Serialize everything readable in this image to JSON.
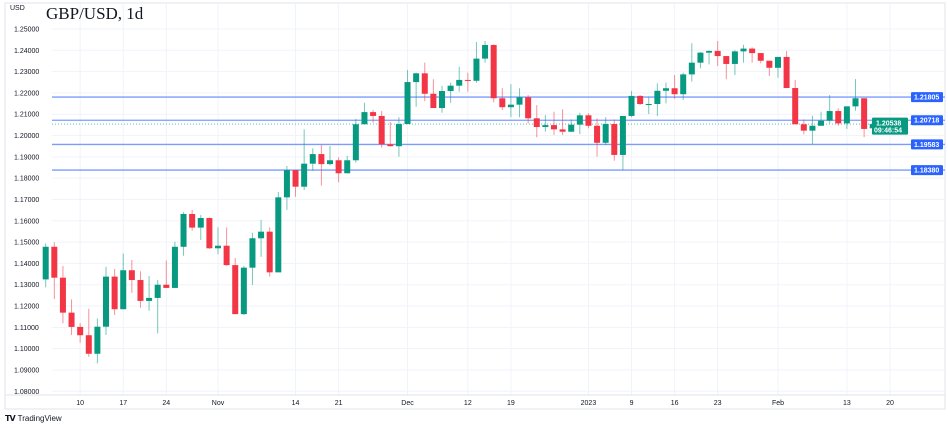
{
  "header": {
    "title": "GBP/USD, 1d",
    "unit": "USD"
  },
  "brand": {
    "logo_text": "TV",
    "name": "TradingView"
  },
  "colors": {
    "up": "#089981",
    "down": "#f23645",
    "level_line": "#7b9cff",
    "level_label": "#2962ff",
    "current_label": "#089981",
    "grid": "#f0f3fa"
  },
  "chart_data": {
    "type": "candlestick",
    "title": "GBP/USD, 1d",
    "ylabel": "USD",
    "ylim": [
      1.08,
      1.25
    ],
    "grid": true,
    "price_ticks": [
      "1.25000",
      "1.24000",
      "1.23000",
      "1.22000",
      "1.21000",
      "1.20000",
      "1.19000",
      "1.18000",
      "1.17000",
      "1.16000",
      "1.15000",
      "1.14000",
      "1.13000",
      "1.12000",
      "1.11000",
      "1.10000",
      "1.09000",
      "1.08000"
    ],
    "time_ticks": [
      {
        "label": "10",
        "date": "2022-10-10"
      },
      {
        "label": "17",
        "date": "2022-10-17"
      },
      {
        "label": "24",
        "date": "2022-10-24"
      },
      {
        "label": "Nov",
        "date": "2022-11-01"
      },
      {
        "label": "14",
        "date": "2022-11-14"
      },
      {
        "label": "21",
        "date": "2022-11-21"
      },
      {
        "label": "Dec",
        "date": "2022-12-01"
      },
      {
        "label": "12",
        "date": "2022-12-12"
      },
      {
        "label": "19",
        "date": "2022-12-19"
      },
      {
        "label": "2023",
        "date": "2023-01-02"
      },
      {
        "label": "9",
        "date": "2023-01-09"
      },
      {
        "label": "16",
        "date": "2023-01-16"
      },
      {
        "label": "23",
        "date": "2023-01-23"
      },
      {
        "label": "Feb",
        "date": "2023-02-01"
      },
      {
        "label": "13",
        "date": "2023-02-13"
      },
      {
        "label": "20",
        "date": "2023-02-20"
      }
    ],
    "levels": [
      {
        "price": "1.21805"
      },
      {
        "price": "1.20718"
      },
      {
        "price": "1.19583"
      },
      {
        "price": "1.18380"
      }
    ],
    "current": {
      "price": "1.20538",
      "countdown": "09:46:54"
    },
    "candles_columns": [
      "date",
      "open",
      "high",
      "low",
      "close"
    ],
    "candles": [
      [
        "2022-10-04",
        1.1325,
        1.1494,
        1.1288,
        1.1478
      ],
      [
        "2022-10-05",
        1.1478,
        1.1499,
        1.1233,
        1.1333
      ],
      [
        "2022-10-06",
        1.1333,
        1.1388,
        1.1119,
        1.1169
      ],
      [
        "2022-10-07",
        1.1169,
        1.1231,
        1.1064,
        1.1102
      ],
      [
        "2022-10-10",
        1.1102,
        1.1119,
        1.1028,
        1.1063
      ],
      [
        "2022-10-11",
        1.1063,
        1.1187,
        1.0962,
        1.0976
      ],
      [
        "2022-10-12",
        1.0976,
        1.1142,
        1.0931,
        1.1103
      ],
      [
        "2022-10-13",
        1.1103,
        1.1384,
        1.1064,
        1.1338
      ],
      [
        "2022-10-14",
        1.1338,
        1.1374,
        1.1158,
        1.1185
      ],
      [
        "2022-10-17",
        1.1185,
        1.1446,
        1.1185,
        1.1368
      ],
      [
        "2022-10-18",
        1.1368,
        1.1416,
        1.1262,
        1.1322
      ],
      [
        "2022-10-19",
        1.1322,
        1.1363,
        1.1192,
        1.1224
      ],
      [
        "2022-10-20",
        1.1224,
        1.1341,
        1.1178,
        1.1238
      ],
      [
        "2022-10-21",
        1.1238,
        1.1322,
        1.1072,
        1.13
      ],
      [
        "2022-10-24",
        1.13,
        1.1413,
        1.1285,
        1.1285
      ],
      [
        "2022-10-25",
        1.1285,
        1.1502,
        1.1285,
        1.1478
      ],
      [
        "2022-10-26",
        1.1478,
        1.1641,
        1.1436,
        1.1632
      ],
      [
        "2022-10-27",
        1.1632,
        1.1651,
        1.1553,
        1.1568
      ],
      [
        "2022-10-28",
        1.1568,
        1.1627,
        1.151,
        1.1613
      ],
      [
        "2022-10-31",
        1.1613,
        1.1616,
        1.1468,
        1.1471
      ],
      [
        "2022-11-01",
        1.1471,
        1.1569,
        1.1443,
        1.1483
      ],
      [
        "2022-11-02",
        1.1483,
        1.1569,
        1.1389,
        1.1392
      ],
      [
        "2022-11-03",
        1.1392,
        1.1425,
        1.1162,
        1.1162
      ],
      [
        "2022-11-04",
        1.1162,
        1.1388,
        1.1158,
        1.138
      ],
      [
        "2022-11-07",
        1.138,
        1.1544,
        1.1299,
        1.1518
      ],
      [
        "2022-11-08",
        1.1518,
        1.1604,
        1.1431,
        1.1549
      ],
      [
        "2022-11-09",
        1.1549,
        1.1569,
        1.1338,
        1.1358
      ],
      [
        "2022-11-10",
        1.1358,
        1.1735,
        1.1358,
        1.171
      ],
      [
        "2022-11-11",
        1.171,
        1.1857,
        1.1651,
        1.1838
      ],
      [
        "2022-11-14",
        1.1838,
        1.1838,
        1.1713,
        1.176
      ],
      [
        "2022-11-15",
        1.176,
        1.2029,
        1.1744,
        1.1868
      ],
      [
        "2022-11-16",
        1.1868,
        1.194,
        1.1835,
        1.1913
      ],
      [
        "2022-11-17",
        1.1913,
        1.1956,
        1.1765,
        1.1866
      ],
      [
        "2022-11-18",
        1.1866,
        1.1951,
        1.186,
        1.1884
      ],
      [
        "2022-11-21",
        1.1884,
        1.1898,
        1.1781,
        1.1823
      ],
      [
        "2022-11-22",
        1.1823,
        1.1904,
        1.1823,
        1.1884
      ],
      [
        "2022-11-23",
        1.1884,
        1.2078,
        1.1873,
        1.2053
      ],
      [
        "2022-11-24",
        1.2053,
        1.2154,
        1.2053,
        1.211
      ],
      [
        "2022-11-25",
        1.211,
        1.212,
        1.206,
        1.2092
      ],
      [
        "2022-11-28",
        1.2092,
        1.2115,
        1.1943,
        1.1959
      ],
      [
        "2022-11-29",
        1.1959,
        1.2064,
        1.1948,
        1.195
      ],
      [
        "2022-11-30",
        1.195,
        1.2086,
        1.1901,
        1.2054
      ],
      [
        "2022-12-01",
        1.2054,
        1.2308,
        1.2054,
        1.2251
      ],
      [
        "2022-12-02",
        1.2251,
        1.2295,
        1.2135,
        1.2292
      ],
      [
        "2022-12-05",
        1.2292,
        1.2342,
        1.2161,
        1.2196
      ],
      [
        "2022-12-06",
        1.2196,
        1.2264,
        1.2129,
        1.2129
      ],
      [
        "2022-12-07",
        1.2129,
        1.2233,
        1.2107,
        1.2209
      ],
      [
        "2022-12-08",
        1.2209,
        1.2248,
        1.2154,
        1.2234
      ],
      [
        "2022-12-09",
        1.2234,
        1.2323,
        1.2206,
        1.2261
      ],
      [
        "2022-12-12",
        1.2261,
        1.2295,
        1.2206,
        1.2257
      ],
      [
        "2022-12-13",
        1.2257,
        1.2439,
        1.2248,
        1.2361
      ],
      [
        "2022-12-14",
        1.2361,
        1.2444,
        1.2342,
        1.2425
      ],
      [
        "2022-12-15",
        1.2425,
        1.2428,
        1.2156,
        1.2175
      ],
      [
        "2022-12-16",
        1.2175,
        1.2222,
        1.212,
        1.2133
      ],
      [
        "2022-12-19",
        1.2133,
        1.2241,
        1.2086,
        1.2145
      ],
      [
        "2022-12-20",
        1.2145,
        1.2222,
        1.2086,
        1.218
      ],
      [
        "2022-12-21",
        1.218,
        1.219,
        1.2057,
        1.2081
      ],
      [
        "2022-12-22",
        1.2081,
        1.2143,
        1.1992,
        1.204
      ],
      [
        "2022-12-23",
        1.204,
        1.2096,
        1.2018,
        1.2049
      ],
      [
        "2022-12-27",
        1.2049,
        1.2112,
        1.2003,
        1.2029
      ],
      [
        "2022-12-28",
        1.2029,
        1.2123,
        1.2003,
        1.2018
      ],
      [
        "2022-12-29",
        1.2018,
        1.2076,
        1.2017,
        1.2051
      ],
      [
        "2022-12-30",
        1.2051,
        1.2107,
        1.2007,
        1.2095
      ],
      [
        "2023-01-02",
        1.2095,
        1.2104,
        1.2034,
        1.2046
      ],
      [
        "2023-01-03",
        1.2046,
        1.2081,
        1.1901,
        1.1966
      ],
      [
        "2023-01-04",
        1.1966,
        1.2086,
        1.1956,
        1.2054
      ],
      [
        "2023-01-05",
        1.2054,
        1.2076,
        1.1882,
        1.1909
      ],
      [
        "2023-01-06",
        1.1909,
        1.2092,
        1.1838,
        1.2092
      ],
      [
        "2023-01-09",
        1.2092,
        1.2209,
        1.2086,
        1.2186
      ],
      [
        "2023-01-10",
        1.2186,
        1.219,
        1.2143,
        1.2148
      ],
      [
        "2023-01-11",
        1.2145,
        1.2182,
        1.2101,
        1.2148
      ],
      [
        "2023-01-12",
        1.2148,
        1.2245,
        1.2092,
        1.221
      ],
      [
        "2023-01-13",
        1.221,
        1.2248,
        1.2151,
        1.2222
      ],
      [
        "2023-01-16",
        1.2222,
        1.2284,
        1.2172,
        1.2194
      ],
      [
        "2023-01-17",
        1.2194,
        1.2295,
        1.2167,
        1.2287
      ],
      [
        "2023-01-18",
        1.2287,
        1.2433,
        1.2253,
        1.2342
      ],
      [
        "2023-01-19",
        1.2342,
        1.2392,
        1.2316,
        1.2389
      ],
      [
        "2023-01-20",
        1.2389,
        1.24,
        1.2334,
        1.2397
      ],
      [
        "2023-01-23",
        1.2397,
        1.2444,
        1.2326,
        1.2373
      ],
      [
        "2023-01-24",
        1.2373,
        1.2373,
        1.2264,
        1.2336
      ],
      [
        "2023-01-25",
        1.2336,
        1.2401,
        1.2284,
        1.2395
      ],
      [
        "2023-01-26",
        1.2395,
        1.2426,
        1.2342,
        1.2408
      ],
      [
        "2023-01-27",
        1.2408,
        1.2414,
        1.2342,
        1.2387
      ],
      [
        "2023-01-30",
        1.2387,
        1.2387,
        1.2339,
        1.2351
      ],
      [
        "2023-01-31",
        1.2351,
        1.2351,
        1.2279,
        1.2318
      ],
      [
        "2023-02-01",
        1.2318,
        1.2369,
        1.2271,
        1.2369
      ],
      [
        "2023-02-02",
        1.2369,
        1.2397,
        1.2223,
        1.2223
      ],
      [
        "2023-02-03",
        1.2223,
        1.2261,
        1.2053,
        1.2053
      ],
      [
        "2023-02-06",
        1.2053,
        1.2076,
        1.2006,
        1.2023
      ],
      [
        "2023-02-07",
        1.2023,
        1.2093,
        1.196,
        1.2046
      ],
      [
        "2023-02-08",
        1.2046,
        1.2112,
        1.2046,
        1.207
      ],
      [
        "2023-02-09",
        1.207,
        1.219,
        1.2057,
        1.2115
      ],
      [
        "2023-02-10",
        1.2115,
        1.2128,
        1.2046,
        1.2057
      ],
      [
        "2023-02-13",
        1.2057,
        1.2137,
        1.2031,
        1.2137
      ],
      [
        "2023-02-14",
        1.2137,
        1.2265,
        1.2117,
        1.2175
      ],
      [
        "2023-02-15",
        1.2175,
        1.2175,
        1.1992,
        1.2031
      ],
      [
        "2023-02-16",
        1.2034,
        1.2073,
        1.2013,
        1.20538
      ]
    ]
  }
}
